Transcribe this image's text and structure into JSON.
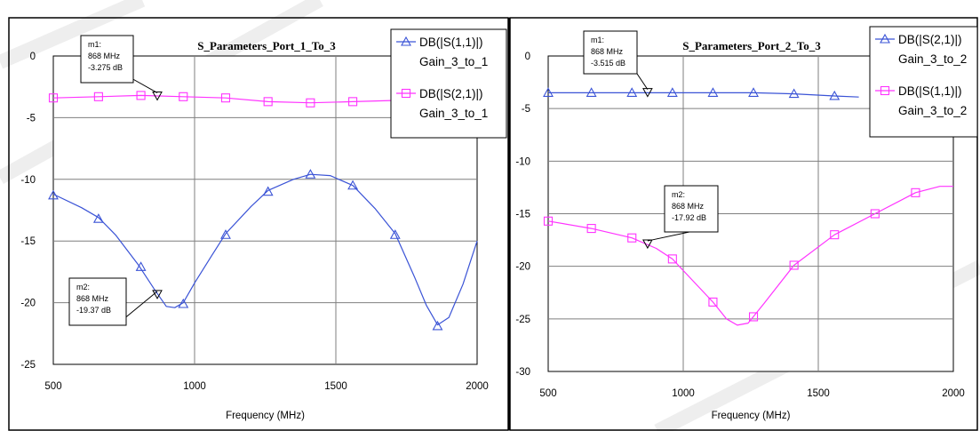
{
  "chart_data": [
    {
      "type": "line",
      "title": "S_Parameters_Port_1_To_3",
      "xlabel": "Frequency (MHz)",
      "ylabel": "",
      "xlim": [
        500,
        2000
      ],
      "ylim": [
        -25,
        0
      ],
      "x_ticks": [
        "500",
        "1000",
        "1500",
        "2000"
      ],
      "y_ticks": [
        "0",
        "-5",
        "-10",
        "-15",
        "-20",
        "-25"
      ],
      "grid": true,
      "legend_position": "top-right",
      "legend": [
        {
          "line1": "DB(|S(1,1)|)",
          "line2": "Gain_3_to_1",
          "marker": "triangle",
          "color": "#3a53d6"
        },
        {
          "line1": "DB(|S(2,1)|)",
          "line2": "Gain_3_to_1",
          "marker": "square",
          "color": "#ff33ff"
        }
      ],
      "series": [
        {
          "color": "#3a53d6",
          "marker": "triangle",
          "x": [
            500,
            600,
            660,
            720,
            800,
            860,
            900,
            930,
            960,
            1000,
            1060,
            1110,
            1200,
            1260,
            1350,
            1410,
            1480,
            1560,
            1640,
            1710,
            1780,
            1820,
            1860,
            1900,
            1950,
            2000
          ],
          "y": [
            -11.2,
            -12.3,
            -13.1,
            -14.5,
            -16.9,
            -19.0,
            -20.3,
            -20.4,
            -20.0,
            -18.4,
            -16.2,
            -14.4,
            -12.2,
            -10.9,
            -10.0,
            -9.6,
            -9.7,
            -10.5,
            -12.4,
            -14.4,
            -18.0,
            -20.2,
            -21.8,
            -21.2,
            -18.5,
            -15.0
          ],
          "markers": [
            [
              500,
              -11.3
            ],
            [
              660,
              -13.2
            ],
            [
              810,
              -17.1
            ],
            [
              960,
              -20.1
            ],
            [
              1110,
              -14.5
            ],
            [
              1260,
              -11.0
            ],
            [
              1410,
              -9.6
            ],
            [
              1560,
              -10.5
            ],
            [
              1710,
              -14.5
            ],
            [
              1860,
              -21.9
            ]
          ]
        },
        {
          "color": "#ff33ff",
          "marker": "square",
          "x": [
            500,
            660,
            810,
            960,
            1110,
            1260,
            1410,
            1560,
            1710,
            1860,
            1900
          ],
          "y": [
            -3.4,
            -3.3,
            -3.2,
            -3.3,
            -3.4,
            -3.7,
            -3.8,
            -3.7,
            -3.6,
            -3.5,
            -3.5
          ],
          "markers": [
            [
              500,
              -3.4
            ],
            [
              660,
              -3.3
            ],
            [
              810,
              -3.2
            ],
            [
              960,
              -3.3
            ],
            [
              1110,
              -3.4
            ],
            [
              1260,
              -3.7
            ],
            [
              1410,
              -3.8
            ],
            [
              1560,
              -3.7
            ]
          ]
        }
      ],
      "annotations": [
        {
          "label": "m1:",
          "freq": "868 MHz",
          "value": "-3.275 dB",
          "x": 868,
          "y": -3.275,
          "box_x": 650,
          "box_y": -1.1
        },
        {
          "label": "m2:",
          "freq": "868 MHz",
          "value": "-19.37 dB",
          "x": 868,
          "y": -19.37,
          "box_x": 640,
          "box_y": -18.3
        }
      ]
    },
    {
      "type": "line",
      "title": "S_Parameters_Port_2_To_3",
      "xlabel": "Frequency (MHz)",
      "ylabel": "",
      "xlim": [
        500,
        2000
      ],
      "ylim": [
        -30,
        0
      ],
      "x_ticks": [
        "500",
        "1000",
        "1500",
        "2000"
      ],
      "y_ticks": [
        "0",
        "-5",
        "-10",
        "-15",
        "-20",
        "-25",
        "-30"
      ],
      "grid": true,
      "legend_position": "top-right",
      "legend": [
        {
          "line1": "DB(|S(2,1)|)",
          "line2": "Gain_3_to_2",
          "marker": "triangle",
          "color": "#3a53d6"
        },
        {
          "line1": "DB(|S(1,1)|)",
          "line2": "Gain_3_to_2",
          "marker": "square",
          "color": "#ff33ff"
        }
      ],
      "series": [
        {
          "color": "#3a53d6",
          "marker": "triangle",
          "x": [
            500,
            660,
            810,
            960,
            1110,
            1260,
            1410,
            1560,
            1650
          ],
          "y": [
            -3.5,
            -3.5,
            -3.5,
            -3.5,
            -3.5,
            -3.5,
            -3.6,
            -3.8,
            -3.9
          ],
          "markers": [
            [
              500,
              -3.5
            ],
            [
              660,
              -3.5
            ],
            [
              810,
              -3.5
            ],
            [
              960,
              -3.5
            ],
            [
              1110,
              -3.5
            ],
            [
              1260,
              -3.5
            ],
            [
              1410,
              -3.6
            ],
            [
              1560,
              -3.8
            ]
          ]
        },
        {
          "color": "#ff33ff",
          "marker": "square",
          "x": [
            500,
            660,
            810,
            900,
            960,
            1040,
            1110,
            1160,
            1200,
            1240,
            1300,
            1410,
            1560,
            1710,
            1860,
            1950,
            2000
          ],
          "y": [
            -15.7,
            -16.4,
            -17.3,
            -18.3,
            -19.3,
            -21.5,
            -23.4,
            -25.0,
            -25.6,
            -25.4,
            -23.5,
            -19.9,
            -17.0,
            -15.0,
            -13.0,
            -12.4,
            -12.4
          ],
          "markers": [
            [
              500,
              -15.7
            ],
            [
              660,
              -16.4
            ],
            [
              810,
              -17.3
            ],
            [
              960,
              -19.3
            ],
            [
              1110,
              -23.4
            ],
            [
              1260,
              -24.8
            ],
            [
              1410,
              -19.9
            ],
            [
              1560,
              -17.0
            ],
            [
              1710,
              -15.0
            ],
            [
              1860,
              -13.0
            ]
          ]
        }
      ],
      "annotations": [
        {
          "label": "m1:",
          "freq": "868 MHz",
          "value": "-3.515 dB",
          "x": 868,
          "y": -3.515,
          "box_x": 660,
          "box_y": -0.5
        },
        {
          "label": "m2:",
          "freq": "868 MHz",
          "value": "-17.92 dB",
          "x": 868,
          "y": -17.92,
          "box_x": 880,
          "box_y": -10.4
        }
      ]
    }
  ]
}
